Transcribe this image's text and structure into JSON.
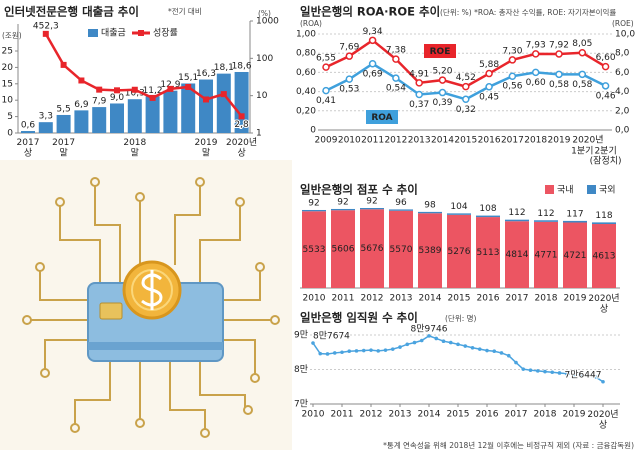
{
  "chart_data": [
    {
      "type": "bar",
      "title": "인터넷전문은행 대출금 추이",
      "subtitle": "*전기 대비",
      "categories": [
        "2017\n상",
        null,
        "2017\n말",
        null,
        null,
        null,
        "2018\n말",
        null,
        null,
        null,
        "2019\n말",
        null,
        "2020년\n상"
      ],
      "series": [
        {
          "name": "대출금",
          "type": "bar",
          "color": "#3f88c5",
          "values": [
            0.6,
            3.3,
            5.5,
            6.9,
            7.9,
            9.0,
            10.3,
            11.2,
            12.9,
            15.1,
            16.3,
            18.1,
            18.6
          ],
          "value_labels": [
            "0,6",
            "3,3",
            "5,5",
            "6,9",
            "7,9",
            "9,0",
            "10,3",
            "11,2",
            "12,9",
            "15,1",
            "16,3",
            "18,1",
            "18,6"
          ]
        },
        {
          "name": "성장률",
          "type": "line",
          "axis": "y2",
          "color": "#e8252b",
          "values": [
            null,
            452.3,
            66.7,
            25.5,
            14.5,
            13.9,
            14.4,
            8.7,
            15.2,
            17.1,
            7.9,
            11.0,
            2.8
          ],
          "value_labels": [
            null,
            "452,3",
            null,
            null,
            null,
            null,
            null,
            null,
            null,
            null,
            null,
            null,
            "2,8"
          ]
        }
      ],
      "ylabel": "(조원)",
      "ylim": [
        0,
        25
      ],
      "yticks": [
        0,
        5,
        10,
        15,
        20,
        25
      ],
      "y2label": "(%)",
      "y2lim": [
        1,
        1000
      ],
      "y2ticks": [
        1,
        10,
        100,
        1000
      ],
      "y2scale": "log"
    },
    {
      "type": "line",
      "title": "일반은행의 ROA·ROE 추이",
      "subtitle": "(단위: %) *ROA: 총자산 수익률, ROE: 자기자본이익률",
      "categories": [
        "2009",
        "2010",
        "2011",
        "2012",
        "2013",
        "2014",
        "2015",
        "2016",
        "2017",
        "2018",
        "2019",
        "1분기",
        "2분기"
      ],
      "category_group": "2020년",
      "note": "(잠정치)",
      "series": [
        {
          "name": "ROE",
          "axis": "y2",
          "color": "#e8252b",
          "values": [
            6.55,
            7.69,
            9.34,
            7.38,
            4.91,
            5.2,
            4.52,
            5.88,
            7.3,
            7.93,
            7.92,
            8.05,
            6.6
          ],
          "value_labels": [
            "6,55",
            "7,69",
            "9,34",
            "7,38",
            "4,91",
            "5,20",
            "4,52",
            "5,88",
            "7,30",
            "7,93",
            "7,92",
            "8,05",
            "6,60"
          ]
        },
        {
          "name": "ROA",
          "color": "#3fa0dc",
          "values": [
            0.41,
            0.53,
            0.69,
            0.54,
            0.37,
            0.39,
            0.32,
            0.45,
            0.56,
            0.6,
            0.58,
            0.58,
            0.46
          ],
          "value_labels": [
            "0,41",
            "0,53",
            "0,69",
            "0,54",
            "0,37",
            "0,39",
            "0,32",
            "0,45",
            "0,56",
            "0,60",
            "0,58",
            "0,58",
            "0,46"
          ]
        }
      ],
      "ylabel": "(ROA)",
      "ylim": [
        0,
        1
      ],
      "yticks": [
        0,
        {
          "value": 0.2,
          "label": "0,20"
        },
        {
          "value": 0.4,
          "label": "0,40"
        },
        {
          "value": 0.6,
          "label": "0,60"
        },
        {
          "value": 0.8,
          "label": "0,80"
        },
        {
          "value": 1,
          "label": "1,00"
        }
      ],
      "y2label": "(ROE)",
      "y2lim": [
        0,
        10
      ],
      "y2ticks": [
        {
          "value": 0,
          "label": "0,0"
        },
        {
          "value": 2,
          "label": "2,0"
        },
        {
          "value": 4,
          "label": "4,0"
        },
        {
          "value": 6,
          "label": "6,0"
        },
        {
          "value": 8,
          "label": "8,0"
        },
        {
          "value": 10,
          "label": "10,0"
        }
      ],
      "grid": true
    },
    {
      "type": "bar",
      "stacked": true,
      "title": "일반은행의 점포 수 추이",
      "categories": [
        "2010",
        "2011",
        "2012",
        "2013",
        "2014",
        "2015",
        "2016",
        "2017",
        "2018",
        "2019",
        "2020년\n상"
      ],
      "series": [
        {
          "name": "국내",
          "color": "#ec5562",
          "values": [
            5533,
            5606,
            5676,
            5570,
            5389,
            5276,
            5113,
            4814,
            4771,
            4721,
            4613
          ]
        },
        {
          "name": "국외",
          "color": "#3f88c5",
          "values": [
            92,
            92,
            92,
            96,
            98,
            104,
            108,
            112,
            112,
            117,
            118
          ]
        }
      ],
      "legend": "top-right"
    },
    {
      "type": "line",
      "title": "일반은행 임직원 수 추이",
      "subtitle": "(단위: 명)",
      "x": [
        2010,
        2010.25,
        2010.5,
        2010.75,
        2011,
        2011.25,
        2011.5,
        2011.75,
        2012,
        2012.25,
        2012.5,
        2012.75,
        2013,
        2013.25,
        2013.5,
        2013.75,
        2014,
        2014.25,
        2014.5,
        2014.75,
        2015,
        2015.25,
        2015.5,
        2015.75,
        2016,
        2016.25,
        2016.5,
        2016.75,
        2017,
        2017.25,
        2017.5,
        2017.75,
        2018,
        2018.25,
        2018.5,
        2018.75,
        2019,
        2019.25,
        2019.5,
        2019.75,
        2020
      ],
      "values": [
        87674,
        84600,
        84500,
        84800,
        85000,
        85300,
        85400,
        85500,
        85600,
        85400,
        85600,
        85900,
        86500,
        87300,
        87800,
        88400,
        89746,
        89000,
        88200,
        87800,
        87300,
        86800,
        86300,
        85900,
        85500,
        85300,
        84800,
        84000,
        82000,
        80100,
        79800,
        79600,
        79400,
        79200,
        79000,
        78800,
        78600,
        78400,
        78200,
        77800,
        76447
      ],
      "value_labels": [
        "8만7674",
        null,
        null,
        null,
        null,
        null,
        null,
        null,
        null,
        null,
        null,
        null,
        null,
        null,
        null,
        null,
        "8만9746",
        null,
        null,
        null,
        null,
        null,
        null,
        null,
        null,
        null,
        null,
        null,
        null,
        null,
        null,
        null,
        null,
        null,
        null,
        null,
        null,
        null,
        null,
        null,
        "7만6447"
      ],
      "color": "#4aa3df",
      "xlim": [
        2010,
        2020
      ],
      "xticks": [
        2010,
        2011,
        2012,
        2013,
        2014,
        2015,
        2016,
        2017,
        2018,
        2019,
        {
          "value": 2020,
          "label": "2020년\n상"
        }
      ],
      "ylim": [
        70000,
        90000
      ],
      "yticks": [
        {
          "value": 70000,
          "label": "7만"
        },
        {
          "value": 80000,
          "label": "8만"
        },
        {
          "value": 90000,
          "label": "9만"
        }
      ],
      "grid": true
    }
  ],
  "footnote": "*통계 연속성을 위해 2018년 12월 이후에는 비정규직 제외 (자료 : 금융감독원)"
}
